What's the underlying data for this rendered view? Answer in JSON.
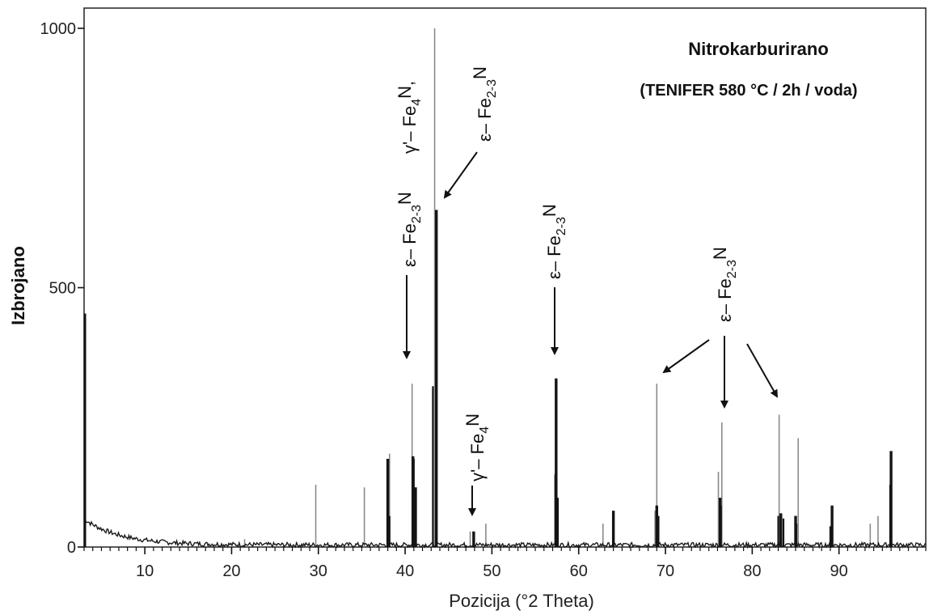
{
  "chart_data": {
    "type": "line",
    "title": "Nitrokarburirano",
    "subtitle": "(TENIFER 580 °C / 2h / voda)",
    "xlabel": "Pozicija   (°2 Theta)",
    "ylabel": "Izbrojano",
    "xlim": [
      3,
      100
    ],
    "ylim": [
      0,
      1000
    ],
    "xticks": [
      10,
      20,
      30,
      40,
      50,
      60,
      70,
      80,
      90
    ],
    "yticks": [
      0,
      500,
      1000
    ],
    "grid": false,
    "series": [
      {
        "kind": "measured-peaks",
        "x": [
          38.0,
          40.9,
          41.2,
          43.6,
          47.9,
          57.4,
          64.0,
          69.0,
          76.3,
          83.3,
          85.0,
          89.2,
          96.0
        ],
        "y": [
          170,
          175,
          115,
          650,
          30,
          325,
          70,
          80,
          95,
          65,
          60,
          80,
          185
        ]
      },
      {
        "kind": "reference-lines",
        "x": [
          21.5,
          29.7,
          35.3,
          38.2,
          40.8,
          43.4,
          47.5,
          49.3,
          57.3,
          62.8,
          68.8,
          69.0,
          76.1,
          76.5,
          83.1,
          85.3,
          93.6,
          94.5
        ],
        "y": [
          15,
          120,
          115,
          180,
          315,
          1000,
          30,
          45,
          140,
          45,
          70,
          315,
          145,
          240,
          255,
          210,
          45,
          60
        ]
      }
    ],
    "annotations": [
      {
        "label": "ε– Fe",
        "sub": "2-3",
        "after": "N"
      },
      {
        "label": "γ'– Fe",
        "sub": "4",
        "after": "N"
      }
    ]
  }
}
